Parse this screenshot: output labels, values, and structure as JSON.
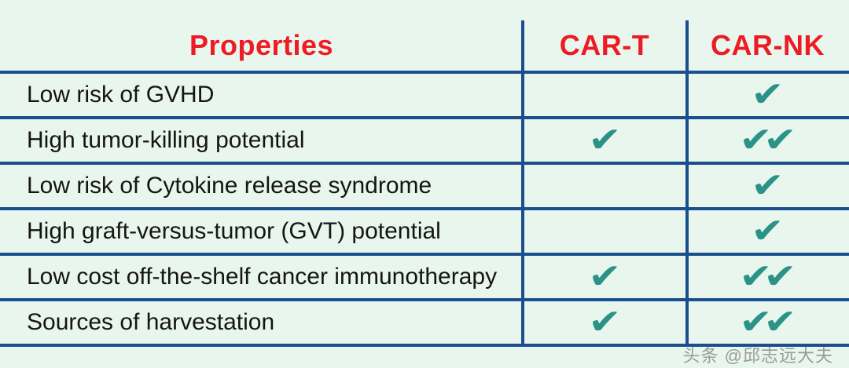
{
  "table": {
    "headers": [
      "Properties",
      "CAR-T",
      "CAR-NK"
    ],
    "rows": [
      {
        "property": "Low risk of GVHD",
        "car_t_checks": 0,
        "car_nk_checks": 1
      },
      {
        "property": "High tumor-killing potential",
        "car_t_checks": 1,
        "car_nk_checks": 2
      },
      {
        "property": "Low risk of Cytokine release syndrome",
        "car_t_checks": 0,
        "car_nk_checks": 1
      },
      {
        "property": "High graft-versus-tumor (GVT) potential",
        "car_t_checks": 0,
        "car_nk_checks": 1
      },
      {
        "property": "Low cost off-the-shelf cancer immunotherapy",
        "car_t_checks": 1,
        "car_nk_checks": 2
      },
      {
        "property": "Sources of harvestation",
        "car_t_checks": 1,
        "car_nk_checks": 2
      }
    ]
  },
  "icons": {
    "check": "✔"
  },
  "watermark": "头条 @邱志远大夫",
  "colors": {
    "background": "#e9f6ee",
    "line_blue": "#1a4e8f",
    "header_red": "#ed1c24",
    "check_teal": "#2a9286",
    "body_text": "#151515",
    "watermark_gray": "#9a9a9a"
  },
  "chart_data": {
    "type": "table",
    "title": "CAR-T vs CAR-NK property comparison",
    "columns": [
      "Properties",
      "CAR-T",
      "CAR-NK"
    ],
    "rows": [
      [
        "Low risk of GVHD",
        0,
        1
      ],
      [
        "High tumor-killing potential",
        1,
        2
      ],
      [
        "Low risk of Cytokine release syndrome",
        0,
        1
      ],
      [
        "High graft-versus-tumor (GVT) potential",
        0,
        1
      ],
      [
        "Low cost off-the-shelf cancer immunotherapy",
        1,
        2
      ],
      [
        "Sources of harvestation",
        1,
        2
      ]
    ],
    "value_meaning": "number of teal checkmarks shown in the cell"
  }
}
